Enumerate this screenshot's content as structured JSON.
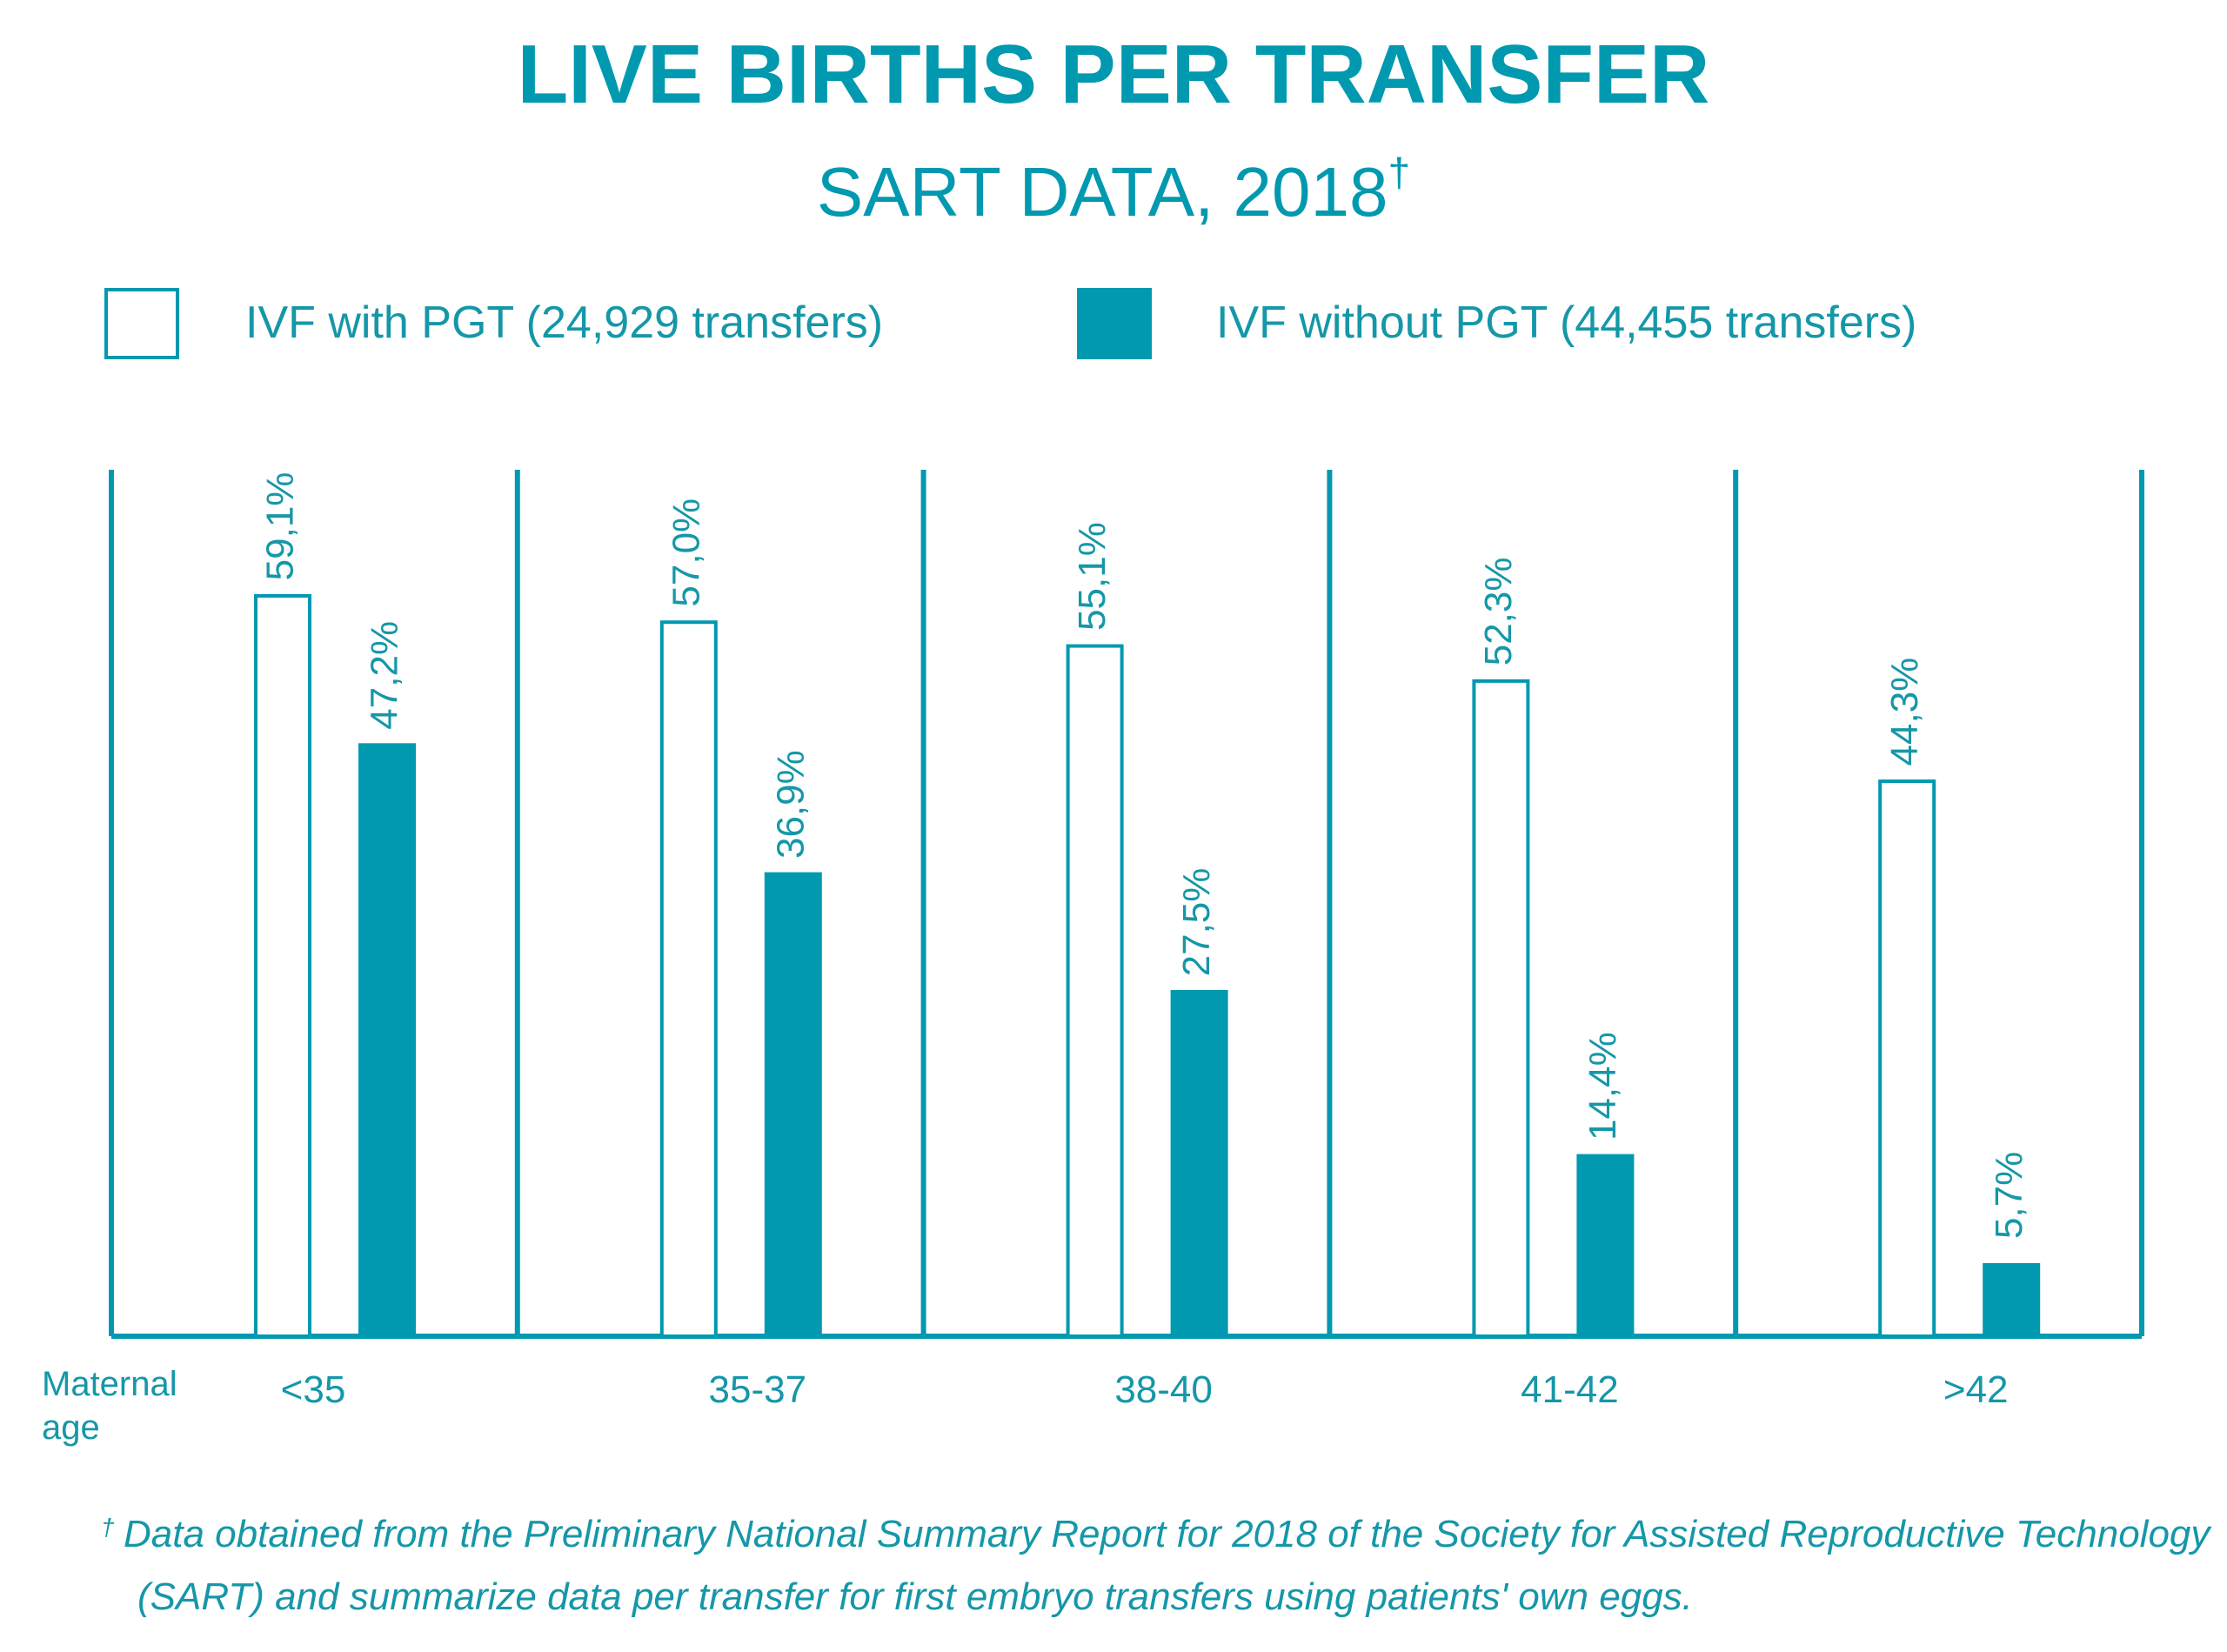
{
  "colors": {
    "accent": "#0099b0",
    "text": "#1597a8",
    "background": "#ffffff"
  },
  "header": {
    "title": "LIVE BIRTHS PER TRANSFER",
    "subtitle": "SART DATA, 2018",
    "subtitle_mark": "†"
  },
  "footnote": {
    "mark": "†",
    "line1": "Data obtained from the Preliminary National Summary Report for 2018 of the Society for Assisted Reproductive Technology",
    "line2": "(SART) and summarize data per transfer for first embryo transfers using patients' own eggs."
  },
  "chart_data": {
    "type": "bar",
    "xlabel": [
      "Maternal",
      "age"
    ],
    "categories": [
      "<35",
      "35-37",
      "38-40",
      "41-42",
      ">42"
    ],
    "series": [
      {
        "name": "IVF with PGT (24,929 transfers)",
        "style": "outline",
        "color": "#0099b0",
        "values": [
          59.1,
          57.0,
          55.1,
          52.3,
          44.3
        ],
        "labels": [
          "59,1%",
          "57,0%",
          "55,1%",
          "52,3%",
          "44,3%"
        ]
      },
      {
        "name": "IVF without PGT (44,455 transfers)",
        "style": "filled",
        "color": "#0099b0",
        "values": [
          47.2,
          36.9,
          27.5,
          14.4,
          5.7
        ],
        "labels": [
          "47,2%",
          "36,9%",
          "27,5%",
          "14,4%",
          "5,7%"
        ]
      }
    ],
    "ylim": [
      0,
      70
    ],
    "grid": false,
    "legend_position": "top",
    "category_separators": true
  }
}
